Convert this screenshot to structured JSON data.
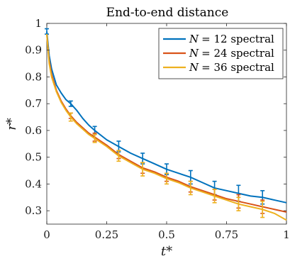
{
  "chart_data": {
    "type": "line",
    "title": "End-to-end distance",
    "xlabel": "t*",
    "ylabel": "r*",
    "xlim": [
      0,
      1
    ],
    "ylim": [
      0.25,
      1.0
    ],
    "xticks": [
      "0",
      "0.25",
      "0.5",
      "0.75",
      "1"
    ],
    "yticks": [
      "0.3",
      "0.4",
      "0.5",
      "0.6",
      "0.7",
      "0.8",
      "0.9",
      "1"
    ],
    "legend_position": "top-right",
    "grid": false,
    "series": [
      {
        "name": "N = 12 spectral",
        "name_var": "N",
        "name_rest": "= 12 spectral",
        "color": "#0072BD",
        "x": [
          0.0,
          0.01,
          0.02,
          0.04,
          0.06,
          0.08,
          0.1,
          0.125,
          0.15,
          0.175,
          0.2,
          0.25,
          0.3,
          0.35,
          0.4,
          0.45,
          0.5,
          0.55,
          0.6,
          0.65,
          0.7,
          0.75,
          0.8,
          0.85,
          0.9,
          0.95,
          1.0
        ],
        "y": [
          0.97,
          0.88,
          0.83,
          0.77,
          0.74,
          0.715,
          0.7,
          0.675,
          0.645,
          0.62,
          0.6,
          0.565,
          0.54,
          0.515,
          0.495,
          0.475,
          0.455,
          0.44,
          0.425,
          0.405,
          0.385,
          0.375,
          0.365,
          0.355,
          0.35,
          0.34,
          0.33
        ],
        "errorbars": {
          "x": [
            0.0,
            0.1,
            0.2,
            0.3,
            0.4,
            0.5,
            0.6,
            0.7,
            0.8,
            0.9
          ],
          "y": [
            0.97,
            0.7,
            0.6,
            0.54,
            0.495,
            0.455,
            0.425,
            0.385,
            0.365,
            0.35
          ],
          "err": [
            0.01,
            0.01,
            0.015,
            0.02,
            0.02,
            0.02,
            0.025,
            0.025,
            0.03,
            0.025
          ]
        }
      },
      {
        "name": "N = 24 spectral",
        "name_var": "N",
        "name_rest": "= 24 spectral",
        "color": "#D95319",
        "x": [
          0.0,
          0.01,
          0.02,
          0.04,
          0.06,
          0.08,
          0.1,
          0.125,
          0.15,
          0.175,
          0.2,
          0.25,
          0.3,
          0.35,
          0.4,
          0.45,
          0.5,
          0.55,
          0.6,
          0.65,
          0.7,
          0.75,
          0.8,
          0.85,
          0.9,
          0.95,
          1.0
        ],
        "y": [
          0.96,
          0.86,
          0.81,
          0.75,
          0.71,
          0.68,
          0.655,
          0.63,
          0.61,
          0.59,
          0.575,
          0.545,
          0.51,
          0.485,
          0.46,
          0.445,
          0.425,
          0.41,
          0.39,
          0.375,
          0.36,
          0.345,
          0.335,
          0.325,
          0.315,
          0.305,
          0.295
        ],
        "errorbars": {
          "x": [
            0.1,
            0.2,
            0.3,
            0.4,
            0.5,
            0.6,
            0.7,
            0.8,
            0.9
          ],
          "y": [
            0.655,
            0.575,
            0.51,
            0.46,
            0.425,
            0.39,
            0.36,
            0.335,
            0.315
          ],
          "err": [
            0.01,
            0.015,
            0.015,
            0.02,
            0.015,
            0.02,
            0.02,
            0.025,
            0.025
          ]
        }
      },
      {
        "name": "N = 36 spectral",
        "name_var": "N",
        "name_rest": "= 36 spectral",
        "color": "#EDB120",
        "x": [
          0.0,
          0.01,
          0.02,
          0.04,
          0.06,
          0.08,
          0.1,
          0.125,
          0.15,
          0.175,
          0.2,
          0.25,
          0.3,
          0.35,
          0.4,
          0.45,
          0.5,
          0.55,
          0.6,
          0.65,
          0.7,
          0.75,
          0.8,
          0.85,
          0.9,
          0.95,
          1.0
        ],
        "y": [
          0.96,
          0.85,
          0.8,
          0.745,
          0.705,
          0.675,
          0.65,
          0.625,
          0.605,
          0.585,
          0.57,
          0.54,
          0.505,
          0.48,
          0.455,
          0.44,
          0.42,
          0.405,
          0.385,
          0.37,
          0.355,
          0.34,
          0.325,
          0.315,
          0.305,
          0.29,
          0.265
        ],
        "errorbars": {
          "x": [
            0.1,
            0.2,
            0.3,
            0.4,
            0.5,
            0.6,
            0.7,
            0.8,
            0.9
          ],
          "y": [
            0.65,
            0.57,
            0.505,
            0.455,
            0.42,
            0.385,
            0.355,
            0.325,
            0.305
          ],
          "err": [
            0.015,
            0.015,
            0.02,
            0.025,
            0.02,
            0.025,
            0.025,
            0.025,
            0.03
          ]
        }
      }
    ]
  }
}
